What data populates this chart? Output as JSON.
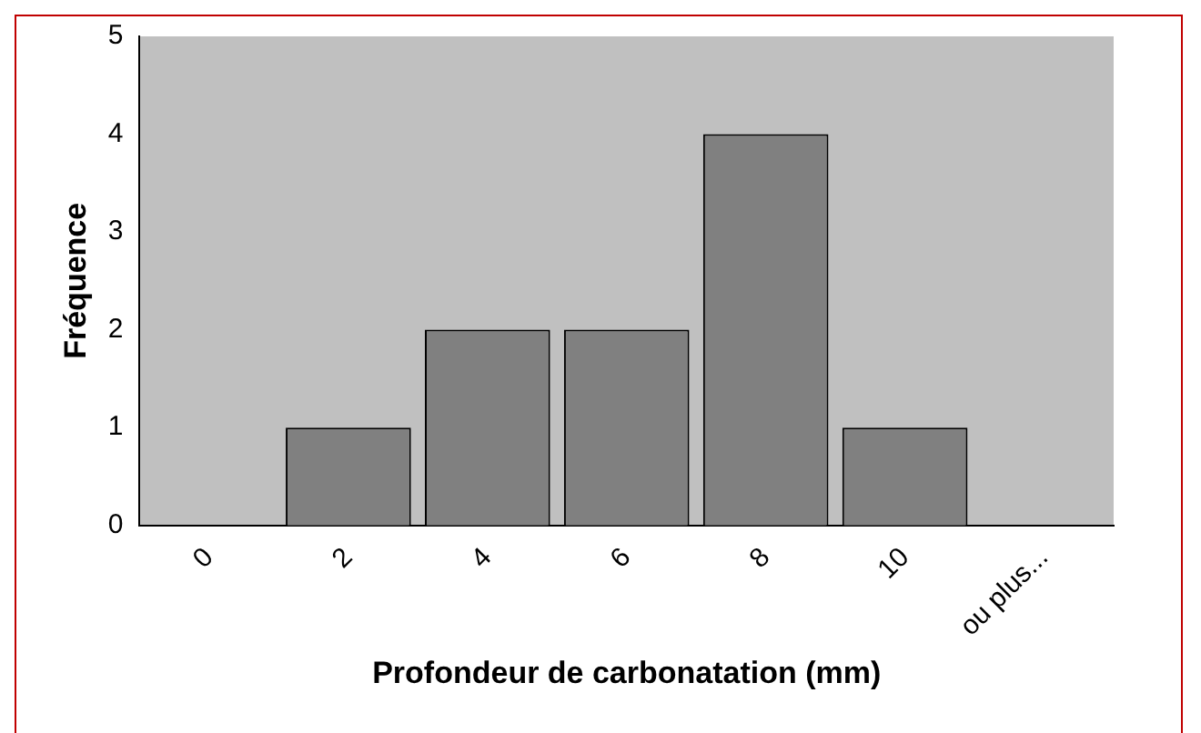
{
  "chart_data": {
    "type": "bar",
    "categories": [
      "0",
      "2",
      "4",
      "6",
      "8",
      "10",
      "ou plus..."
    ],
    "values": [
      0,
      1,
      2,
      2,
      4,
      1,
      0
    ],
    "color": "#808080",
    "xlabel": "Profondeur de carbonatation (mm)",
    "ylabel": "Fréquence",
    "ylim": [
      0,
      5
    ],
    "yticks": [
      0,
      1,
      2,
      3,
      4,
      5
    ],
    "grid": false,
    "legend": false
  }
}
